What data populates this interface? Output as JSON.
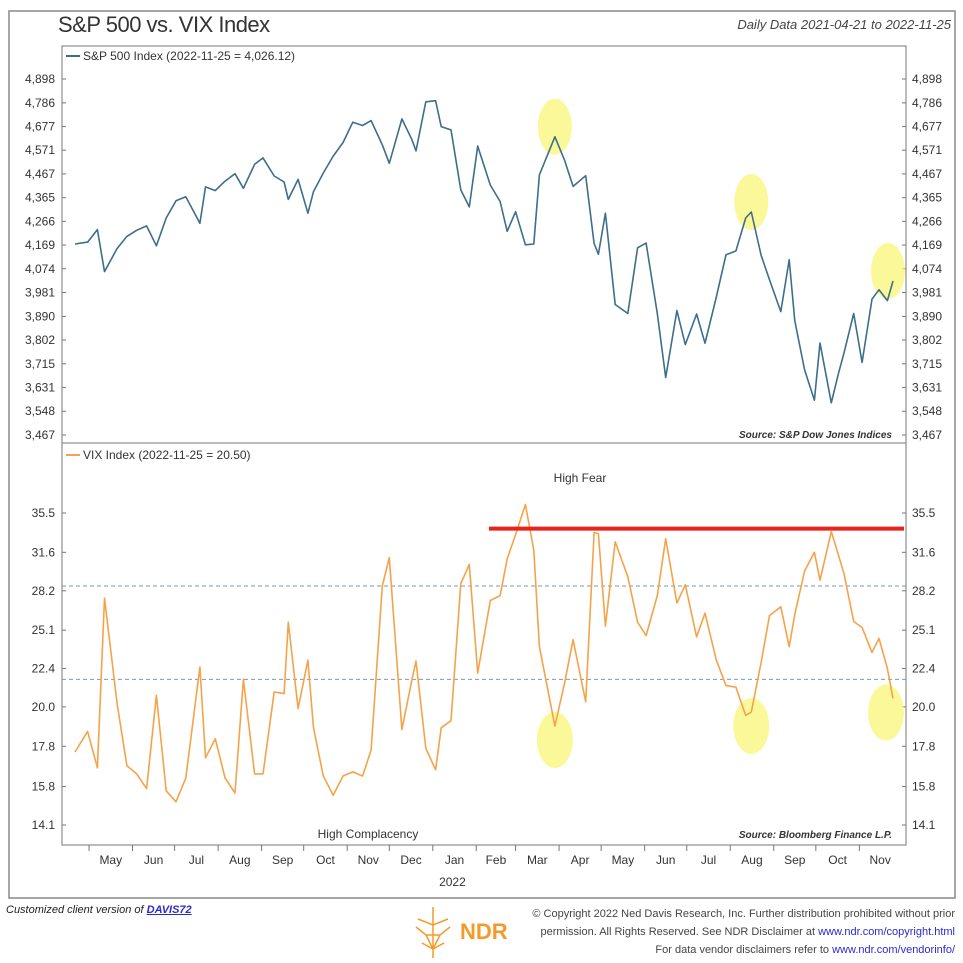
{
  "header": {
    "title": "S&P 500 vs. VIX Index",
    "subtitle": "Daily Data 2021-04-21 to 2022-11-25"
  },
  "footer": {
    "customized_prefix": "Customized client version of ",
    "customized_link": "DAVIS72",
    "copyright_line1": "© Copyright 2022 Ned Davis Research, Inc. Further distribution prohibited without prior",
    "copyright_line2": "permission. All Rights Reserved. See NDR Disclaimer at ",
    "copyright_link": "www.ndr.com/copyright.html",
    "vendor_text": "For data vendor disclaimers refer to ",
    "vendor_link": "www.ndr.com/vendorinfo/",
    "logo": "NDR"
  },
  "chart_data": [
    {
      "type": "line",
      "legend": "S&P 500 Index (2022-11-25 = 4,026.12)",
      "color": "#3d6e8c",
      "scale": "log",
      "ylim": [
        3467,
        4898
      ],
      "yticks": [
        "4,898",
        "4,786",
        "4,677",
        "4,571",
        "4,467",
        "4,365",
        "4,266",
        "4,169",
        "4,074",
        "3,981",
        "3,890",
        "3,802",
        "3,715",
        "3,631",
        "3,548",
        "3,467"
      ],
      "source": "Source:  S&P Dow Jones Indices",
      "highlights": [
        "2022-03-29",
        "2022-08-16",
        "2022-11-25"
      ],
      "x": [
        "2021-04-21",
        "2021-04-30",
        "2021-05-07",
        "2021-05-12",
        "2021-05-21",
        "2021-05-28",
        "2021-06-04",
        "2021-06-11",
        "2021-06-18",
        "2021-06-25",
        "2021-07-02",
        "2021-07-09",
        "2021-07-19",
        "2021-07-23",
        "2021-07-30",
        "2021-08-06",
        "2021-08-13",
        "2021-08-19",
        "2021-08-27",
        "2021-09-02",
        "2021-09-10",
        "2021-09-17",
        "2021-09-20",
        "2021-09-27",
        "2021-10-04",
        "2021-10-08",
        "2021-10-15",
        "2021-10-22",
        "2021-10-29",
        "2021-11-05",
        "2021-11-12",
        "2021-11-18",
        "2021-11-26",
        "2021-12-01",
        "2021-12-10",
        "2021-12-17",
        "2021-12-20",
        "2021-12-27",
        "2022-01-03",
        "2022-01-07",
        "2022-01-14",
        "2022-01-21",
        "2022-01-27",
        "2022-02-02",
        "2022-02-11",
        "2022-02-18",
        "2022-02-23",
        "2022-03-01",
        "2022-03-08",
        "2022-03-14",
        "2022-03-18",
        "2022-03-29",
        "2022-04-05",
        "2022-04-11",
        "2022-04-20",
        "2022-04-26",
        "2022-04-29",
        "2022-05-04",
        "2022-05-11",
        "2022-05-20",
        "2022-05-27",
        "2022-06-02",
        "2022-06-10",
        "2022-06-16",
        "2022-06-24",
        "2022-06-30",
        "2022-07-08",
        "2022-07-14",
        "2022-07-22",
        "2022-07-29",
        "2022-08-05",
        "2022-08-12",
        "2022-08-16",
        "2022-08-23",
        "2022-08-29",
        "2022-09-06",
        "2022-09-12",
        "2022-09-16",
        "2022-09-23",
        "2022-09-30",
        "2022-10-04",
        "2022-10-12",
        "2022-10-17",
        "2022-10-21",
        "2022-10-28",
        "2022-11-03",
        "2022-11-10",
        "2022-11-15",
        "2022-11-21",
        "2022-11-25"
      ],
      "values": [
        4173,
        4181,
        4232,
        4063,
        4155,
        4204,
        4229,
        4247,
        4166,
        4280,
        4352,
        4369,
        4258,
        4411,
        4395,
        4436,
        4468,
        4405,
        4509,
        4537,
        4458,
        4432,
        4358,
        4443,
        4300,
        4391,
        4471,
        4545,
        4605,
        4697,
        4682,
        4704,
        4595,
        4513,
        4712,
        4620,
        4568,
        4791,
        4796,
        4677,
        4662,
        4398,
        4326,
        4589,
        4419,
        4349,
        4225,
        4306,
        4170,
        4173,
        4463,
        4631,
        4525,
        4413,
        4459,
        4175,
        4132,
        4300,
        3935,
        3901,
        4158,
        4177,
        3901,
        3666,
        3912,
        3785,
        3899,
        3790,
        3962,
        4130,
        4145,
        4280,
        4305,
        4128,
        4031,
        3908,
        4110,
        3873,
        3693,
        3586,
        3791,
        3577,
        3678,
        3753,
        3901,
        3720,
        3956,
        3992,
        3950,
        4026
      ]
    },
    {
      "type": "line",
      "legend": "VIX Index (2022-11-25 = 20.50)",
      "color": "#f5a34a",
      "scale": "log",
      "ylim": [
        14.1,
        35.5
      ],
      "yticks": [
        "35.5",
        "31.6",
        "28.2",
        "25.1",
        "22.4",
        "20.0",
        "17.8",
        "15.8",
        "14.1"
      ],
      "reference_lines": [
        28.6,
        21.7
      ],
      "threshold": {
        "value": 33.9,
        "from": "2022-02-10",
        "color": "#e8231a"
      },
      "labels": {
        "high": "High Fear",
        "low": "High Complacency"
      },
      "source": "Source:  Bloomberg Finance L.P.",
      "highlights": [
        "2022-03-29",
        "2022-08-16",
        "2022-11-25"
      ],
      "x": "same as S&P 500",
      "values": [
        17.5,
        18.6,
        16.7,
        27.6,
        20.2,
        16.8,
        16.4,
        15.7,
        20.7,
        15.6,
        15.1,
        16.2,
        22.5,
        17.2,
        18.2,
        16.2,
        15.5,
        21.7,
        16.4,
        16.4,
        20.9,
        20.8,
        25.7,
        19.9,
        22.96,
        18.8,
        16.3,
        15.4,
        16.3,
        16.5,
        16.3,
        17.6,
        28.6,
        31.1,
        18.7,
        21.6,
        22.9,
        17.7,
        16.6,
        18.8,
        19.2,
        28.8,
        30.5,
        22.1,
        27.4,
        27.8,
        31.0,
        33.3,
        36.4,
        31.8,
        23.9,
        18.9,
        21.5,
        24.4,
        20.3,
        33.5,
        33.4,
        25.4,
        32.6,
        29.4,
        25.7,
        24.7,
        27.8,
        32.9,
        27.2,
        28.7,
        24.6,
        26.4,
        23.0,
        21.3,
        21.2,
        19.5,
        19.7,
        22.8,
        26.2,
        26.9,
        23.9,
        26.3,
        29.9,
        31.6,
        29.1,
        33.6,
        31.4,
        29.7,
        25.75,
        25.3,
        23.5,
        24.5,
        22.4,
        20.5
      ]
    },
    {
      "xaxis": {
        "months": [
          "May",
          "Jun",
          "Jul",
          "Aug",
          "Sep",
          "Oct",
          "Nov",
          "Dec",
          "Jan",
          "Feb",
          "Mar",
          "Apr",
          "May",
          "Jun",
          "Jul",
          "Aug",
          "Sep",
          "Oct",
          "Nov"
        ],
        "year_label": "2022"
      }
    }
  ]
}
